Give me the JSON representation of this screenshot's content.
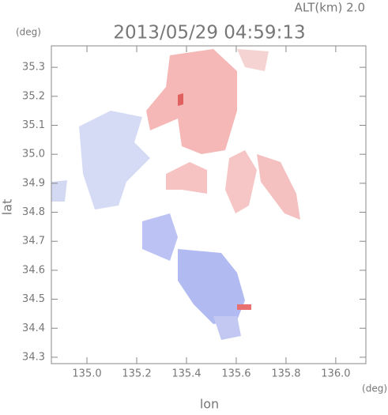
{
  "chart_data": {
    "type": "map",
    "subtitle": "ALT(km) 2.0",
    "title": "2013/05/29 04:59:13",
    "y_unit": "(deg)",
    "x_unit": "(deg)",
    "xlabel": "lon",
    "ylabel": "lat",
    "xlim": [
      134.857,
      136.121
    ],
    "ylim": [
      34.278,
      35.374
    ],
    "xticks": [
      {
        "value": 135.0,
        "label": "135.0"
      },
      135.2,
      135.4,
      135.6,
      135.8,
      {
        "value": 136.0,
        "label": "136.0"
      }
    ],
    "yticks": [
      34.3,
      34.4,
      34.5,
      34.6,
      34.7,
      34.8,
      34.9,
      {
        "value": 35.0,
        "label": "35.0"
      },
      35.1,
      35.2,
      35.3
    ]
  }
}
